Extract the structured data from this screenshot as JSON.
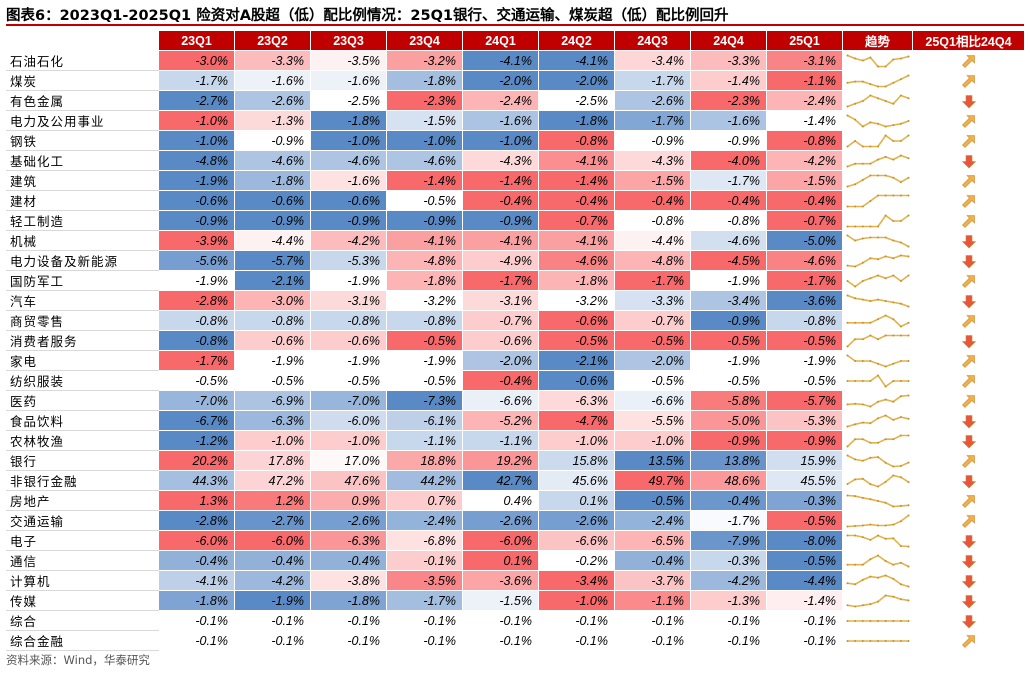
{
  "title": "图表6：2023Q1-2025Q1 险资对A股超（低）配比例情况：25Q1银行、交通运输、煤炭超（低）配比例回升",
  "source": "资料来源：Wind，华泰研究",
  "colors": {
    "header_bg": "#c00000",
    "high": "#f8696b",
    "low": "#5a8ac6",
    "mid": "#ffffff",
    "arrow_up": "#f2b04a",
    "arrow_down": "#e8553c",
    "trend_line": "#e3b24a"
  },
  "chart_data": {
    "type": "table",
    "columns": [
      "23Q1",
      "23Q2",
      "23Q3",
      "23Q4",
      "24Q1",
      "24Q2",
      "24Q3",
      "24Q4",
      "25Q1"
    ],
    "trend_header": "趋势",
    "change_header": "25Q1相比24Q4",
    "rows": [
      {
        "name": "石油石化",
        "values": [
          -3.0,
          -3.3,
          -3.5,
          -3.2,
          -4.1,
          -4.1,
          -3.4,
          -3.3,
          -3.1
        ],
        "labels": [
          "-3.0%",
          "-3.3%",
          "-3.5%",
          "-3.2%",
          "-4.1%",
          "-4.1%",
          "-3.4%",
          "-3.3%",
          "-3.1%"
        ],
        "change": "up"
      },
      {
        "name": "煤炭",
        "values": [
          -1.7,
          -1.6,
          -1.6,
          -1.8,
          -2.0,
          -2.0,
          -1.7,
          -1.4,
          -1.1
        ],
        "labels": [
          "-1.7%",
          "-1.6%",
          "-1.6%",
          "-1.8%",
          "-2.0%",
          "-2.0%",
          "-1.7%",
          "-1.4%",
          "-1.1%"
        ],
        "change": "up"
      },
      {
        "name": "有色金属",
        "values": [
          -2.7,
          -2.6,
          -2.5,
          -2.3,
          -2.4,
          -2.5,
          -2.6,
          -2.3,
          -2.4
        ],
        "labels": [
          "-2.7%",
          "-2.6%",
          "-2.5%",
          "-2.3%",
          "-2.4%",
          "-2.5%",
          "-2.6%",
          "-2.3%",
          "-2.4%"
        ],
        "change": "down"
      },
      {
        "name": "电力及公用事业",
        "values": [
          -1.0,
          -1.3,
          -1.8,
          -1.5,
          -1.6,
          -1.8,
          -1.7,
          -1.6,
          -1.4
        ],
        "labels": [
          "-1.0%",
          "-1.3%",
          "-1.8%",
          "-1.5%",
          "-1.6%",
          "-1.8%",
          "-1.7%",
          "-1.6%",
          "-1.4%"
        ],
        "change": "up"
      },
      {
        "name": "钢铁",
        "values": [
          -1.0,
          -0.9,
          -1.0,
          -1.0,
          -1.0,
          -0.8,
          -0.9,
          -0.9,
          -0.8
        ],
        "labels": [
          "-1.0%",
          "-0.9%",
          "-1.0%",
          "-1.0%",
          "-1.0%",
          "-0.8%",
          "-0.9%",
          "-0.9%",
          "-0.8%"
        ],
        "change": "up"
      },
      {
        "name": "基础化工",
        "values": [
          -4.8,
          -4.6,
          -4.6,
          -4.6,
          -4.3,
          -4.1,
          -4.3,
          -4.0,
          -4.2
        ],
        "labels": [
          "-4.8%",
          "-4.6%",
          "-4.6%",
          "-4.6%",
          "-4.3%",
          "-4.1%",
          "-4.3%",
          "-4.0%",
          "-4.2%"
        ],
        "change": "down"
      },
      {
        "name": "建筑",
        "values": [
          -1.9,
          -1.8,
          -1.6,
          -1.4,
          -1.4,
          -1.4,
          -1.5,
          -1.7,
          -1.5
        ],
        "labels": [
          "-1.9%",
          "-1.8%",
          "-1.6%",
          "-1.4%",
          "-1.4%",
          "-1.4%",
          "-1.5%",
          "-1.7%",
          "-1.5%"
        ],
        "change": "up"
      },
      {
        "name": "建材",
        "values": [
          -0.6,
          -0.6,
          -0.6,
          -0.5,
          -0.4,
          -0.4,
          -0.4,
          -0.4,
          -0.4
        ],
        "labels": [
          "-0.6%",
          "-0.6%",
          "-0.6%",
          "-0.5%",
          "-0.4%",
          "-0.4%",
          "-0.4%",
          "-0.4%",
          "-0.4%"
        ],
        "change": "up"
      },
      {
        "name": "轻工制造",
        "values": [
          -0.9,
          -0.9,
          -0.9,
          -0.9,
          -0.9,
          -0.7,
          -0.8,
          -0.8,
          -0.7
        ],
        "labels": [
          "-0.9%",
          "-0.9%",
          "-0.9%",
          "-0.9%",
          "-0.9%",
          "-0.7%",
          "-0.8%",
          "-0.8%",
          "-0.7%"
        ],
        "change": "up"
      },
      {
        "name": "机械",
        "values": [
          -3.9,
          -4.4,
          -4.2,
          -4.1,
          -4.1,
          -4.1,
          -4.4,
          -4.6,
          -5.0
        ],
        "labels": [
          "-3.9%",
          "-4.4%",
          "-4.2%",
          "-4.1%",
          "-4.1%",
          "-4.1%",
          "-4.4%",
          "-4.6%",
          "-5.0%"
        ],
        "change": "down"
      },
      {
        "name": "电力设备及新能源",
        "values": [
          -5.6,
          -5.7,
          -5.3,
          -4.8,
          -4.9,
          -4.6,
          -4.8,
          -4.5,
          -4.6
        ],
        "labels": [
          "-5.6%",
          "-5.7%",
          "-5.3%",
          "-4.8%",
          "-4.9%",
          "-4.6%",
          "-4.8%",
          "-4.5%",
          "-4.6%"
        ],
        "change": "down"
      },
      {
        "name": "国防军工",
        "values": [
          -1.9,
          -2.1,
          -1.9,
          -1.8,
          -1.7,
          -1.8,
          -1.7,
          -1.9,
          -1.7
        ],
        "labels": [
          "-1.9%",
          "-2.1%",
          "-1.9%",
          "-1.8%",
          "-1.7%",
          "-1.8%",
          "-1.7%",
          "-1.9%",
          "-1.7%"
        ],
        "change": "up"
      },
      {
        "name": "汽车",
        "values": [
          -2.8,
          -3.0,
          -3.1,
          -3.2,
          -3.1,
          -3.2,
          -3.3,
          -3.4,
          -3.6
        ],
        "labels": [
          "-2.8%",
          "-3.0%",
          "-3.1%",
          "-3.2%",
          "-3.1%",
          "-3.2%",
          "-3.3%",
          "-3.4%",
          "-3.6%"
        ],
        "change": "down"
      },
      {
        "name": "商贸零售",
        "values": [
          -0.8,
          -0.8,
          -0.8,
          -0.8,
          -0.7,
          -0.6,
          -0.7,
          -0.9,
          -0.8
        ],
        "labels": [
          "-0.8%",
          "-0.8%",
          "-0.8%",
          "-0.8%",
          "-0.7%",
          "-0.6%",
          "-0.7%",
          "-0.9%",
          "-0.8%"
        ],
        "change": "up"
      },
      {
        "name": "消费者服务",
        "values": [
          -0.8,
          -0.6,
          -0.6,
          -0.5,
          -0.6,
          -0.5,
          -0.5,
          -0.5,
          -0.5
        ],
        "labels": [
          "-0.8%",
          "-0.6%",
          "-0.6%",
          "-0.5%",
          "-0.6%",
          "-0.5%",
          "-0.5%",
          "-0.5%",
          "-0.5%"
        ],
        "change": "down"
      },
      {
        "name": "家电",
        "values": [
          -1.7,
          -1.9,
          -1.9,
          -1.9,
          -2.0,
          -2.1,
          -2.0,
          -1.9,
          -1.9
        ],
        "labels": [
          "-1.7%",
          "-1.9%",
          "-1.9%",
          "-1.9%",
          "-2.0%",
          "-2.1%",
          "-2.0%",
          "-1.9%",
          "-1.9%"
        ],
        "change": "up"
      },
      {
        "name": "纺织服装",
        "values": [
          -0.5,
          -0.5,
          -0.5,
          -0.5,
          -0.4,
          -0.6,
          -0.5,
          -0.5,
          -0.5
        ],
        "labels": [
          "-0.5%",
          "-0.5%",
          "-0.5%",
          "-0.5%",
          "-0.4%",
          "-0.6%",
          "-0.5%",
          "-0.5%",
          "-0.5%"
        ],
        "change": "up"
      },
      {
        "name": "医药",
        "values": [
          -7.0,
          -6.9,
          -7.0,
          -7.3,
          -6.6,
          -6.3,
          -6.6,
          -5.8,
          -5.7
        ],
        "labels": [
          "-7.0%",
          "-6.9%",
          "-7.0%",
          "-7.3%",
          "-6.6%",
          "-6.3%",
          "-6.6%",
          "-5.8%",
          "-5.7%"
        ],
        "change": "up"
      },
      {
        "name": "食品饮料",
        "values": [
          -6.7,
          -6.3,
          -6.0,
          -6.1,
          -5.2,
          -4.7,
          -5.5,
          -5.0,
          -5.3
        ],
        "labels": [
          "-6.7%",
          "-6.3%",
          "-6.0%",
          "-6.1%",
          "-5.2%",
          "-4.7%",
          "-5.5%",
          "-5.0%",
          "-5.3%"
        ],
        "change": "down"
      },
      {
        "name": "农林牧渔",
        "values": [
          -1.2,
          -1.0,
          -1.0,
          -1.1,
          -1.1,
          -1.0,
          -1.0,
          -0.9,
          -0.9
        ],
        "labels": [
          "-1.2%",
          "-1.0%",
          "-1.0%",
          "-1.1%",
          "-1.1%",
          "-1.0%",
          "-1.0%",
          "-0.9%",
          "-0.9%"
        ],
        "change": "down"
      },
      {
        "name": "银行",
        "values": [
          20.2,
          17.8,
          17.0,
          18.8,
          19.2,
          15.8,
          13.5,
          13.8,
          15.9
        ],
        "labels": [
          "20.2%",
          "17.8%",
          "17.0%",
          "18.8%",
          "19.2%",
          "15.8%",
          "13.5%",
          "13.8%",
          "15.9%"
        ],
        "change": "up"
      },
      {
        "name": "非银行金融",
        "values": [
          44.3,
          47.2,
          47.6,
          44.2,
          42.7,
          45.6,
          49.7,
          48.6,
          45.5
        ],
        "labels": [
          "44.3%",
          "47.2%",
          "47.6%",
          "44.2%",
          "42.7%",
          "45.6%",
          "49.7%",
          "48.6%",
          "45.5%"
        ],
        "change": "down"
      },
      {
        "name": "房地产",
        "values": [
          1.3,
          1.2,
          0.9,
          0.7,
          0.4,
          0.1,
          -0.5,
          -0.4,
          -0.3
        ],
        "labels": [
          "1.3%",
          "1.2%",
          "0.9%",
          "0.7%",
          "0.4%",
          "0.1%",
          "-0.5%",
          "-0.4%",
          "-0.3%"
        ],
        "change": "up"
      },
      {
        "name": "交通运输",
        "values": [
          -2.8,
          -2.7,
          -2.6,
          -2.4,
          -2.6,
          -2.6,
          -2.4,
          -1.7,
          -0.5
        ],
        "labels": [
          "-2.8%",
          "-2.7%",
          "-2.6%",
          "-2.4%",
          "-2.6%",
          "-2.6%",
          "-2.4%",
          "-1.7%",
          "-0.5%"
        ],
        "change": "up"
      },
      {
        "name": "电子",
        "values": [
          -6.0,
          -6.0,
          -6.3,
          -6.8,
          -6.0,
          -6.6,
          -6.5,
          -7.9,
          -8.0
        ],
        "labels": [
          "-6.0%",
          "-6.0%",
          "-6.3%",
          "-6.8%",
          "-6.0%",
          "-6.6%",
          "-6.5%",
          "-7.9%",
          "-8.0%"
        ],
        "change": "down"
      },
      {
        "name": "通信",
        "values": [
          -0.4,
          -0.4,
          -0.4,
          -0.1,
          0.1,
          -0.2,
          -0.4,
          -0.3,
          -0.5
        ],
        "labels": [
          "-0.4%",
          "-0.4%",
          "-0.4%",
          "-0.1%",
          "0.1%",
          "-0.2%",
          "-0.4%",
          "-0.3%",
          "-0.5%"
        ],
        "change": "down"
      },
      {
        "name": "计算机",
        "values": [
          -4.1,
          -4.2,
          -3.8,
          -3.5,
          -3.6,
          -3.4,
          -3.7,
          -4.2,
          -4.4
        ],
        "labels": [
          "-4.1%",
          "-4.2%",
          "-3.8%",
          "-3.5%",
          "-3.6%",
          "-3.4%",
          "-3.7%",
          "-4.2%",
          "-4.4%"
        ],
        "change": "down"
      },
      {
        "name": "传媒",
        "values": [
          -1.8,
          -1.9,
          -1.8,
          -1.7,
          -1.5,
          -1.0,
          -1.1,
          -1.3,
          -1.4
        ],
        "labels": [
          "-1.8%",
          "-1.9%",
          "-1.8%",
          "-1.7%",
          "-1.5%",
          "-1.0%",
          "-1.1%",
          "-1.3%",
          "-1.4%"
        ],
        "change": "down"
      },
      {
        "name": "综合",
        "values": [
          -0.1,
          -0.1,
          -0.1,
          -0.1,
          -0.1,
          -0.1,
          -0.1,
          -0.1,
          -0.1
        ],
        "labels": [
          "-0.1%",
          "-0.1%",
          "-0.1%",
          "-0.1%",
          "-0.1%",
          "-0.1%",
          "-0.1%",
          "-0.1%",
          "-0.1%"
        ],
        "change": "down"
      },
      {
        "name": "综合金融",
        "values": [
          -0.1,
          -0.1,
          -0.1,
          -0.1,
          -0.1,
          -0.1,
          -0.1,
          -0.1,
          -0.1
        ],
        "labels": [
          "-0.1%",
          "-0.1%",
          "-0.1%",
          "-0.1%",
          "-0.1%",
          "-0.1%",
          "-0.1%",
          "-0.1%",
          "-0.1%"
        ],
        "change": "up"
      }
    ]
  }
}
